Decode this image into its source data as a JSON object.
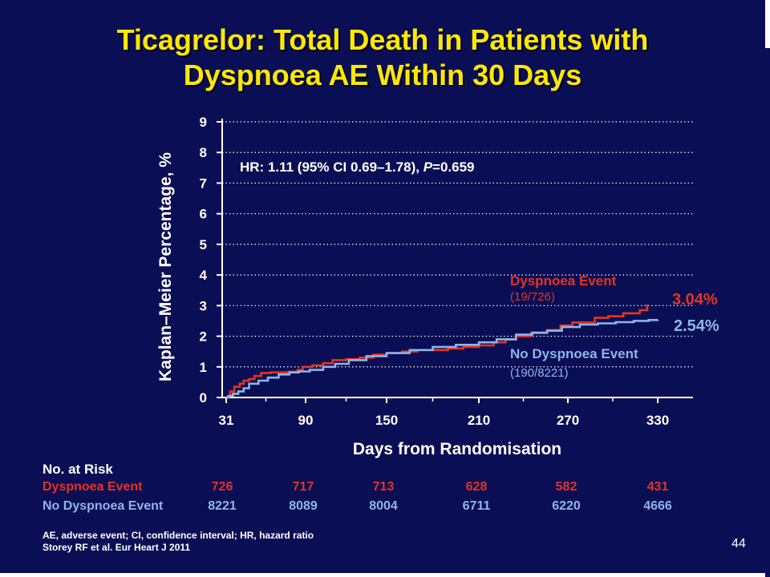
{
  "slide": {
    "title_line1": "Ticagrelor: Total Death in Patients with",
    "title_line2": "Dyspnoea AE Within 30 Days",
    "footnote_line1": "AE, adverse event; CI, confidence interval; HR, hazard ratio",
    "footnote_line2": "Storey RF et al. Eur Heart J 2011",
    "page_number": "44"
  },
  "colors": {
    "background": "#0a0f55",
    "title": "#ffe800",
    "dyspnoea": "#e8321e",
    "no_dyspnoea": "#8fb4ea",
    "grid": "#ffffff"
  },
  "chart_data": {
    "type": "line",
    "title": "",
    "xlabel": "Days from Randomisation",
    "ylabel": "Kaplan–Meier Percentage, %",
    "x_ticks": [
      31,
      90,
      150,
      210,
      270,
      330
    ],
    "y_ticks": [
      0,
      1,
      2,
      3,
      4,
      5,
      6,
      7,
      8,
      9
    ],
    "xlim": [
      31,
      360
    ],
    "ylim": [
      0,
      9
    ],
    "grid": "horizontal dotted",
    "annotation_hr": "HR: 1.11 (95% CI 0.69–1.78), ",
    "annotation_p_label": "P",
    "annotation_p_value": "=0.659",
    "series": [
      {
        "name": "Dyspnoea Event",
        "counts": "(19/726)",
        "end_label": "3.04%",
        "color": "#e8321e",
        "points": [
          [
            31,
            0
          ],
          [
            32,
            0.05
          ],
          [
            34,
            0.2
          ],
          [
            37,
            0.35
          ],
          [
            41,
            0.45
          ],
          [
            44,
            0.55
          ],
          [
            48,
            0.6
          ],
          [
            52,
            0.7
          ],
          [
            57,
            0.8
          ],
          [
            64,
            0.82
          ],
          [
            70,
            0.82
          ],
          [
            77,
            0.84
          ],
          [
            84,
            0.9
          ],
          [
            88,
            1.0
          ],
          [
            95,
            1.05
          ],
          [
            103,
            1.12
          ],
          [
            110,
            1.22
          ],
          [
            120,
            1.25
          ],
          [
            130,
            1.3
          ],
          [
            140,
            1.4
          ],
          [
            150,
            1.45
          ],
          [
            160,
            1.5
          ],
          [
            170,
            1.55
          ],
          [
            180,
            1.55
          ],
          [
            190,
            1.6
          ],
          [
            200,
            1.65
          ],
          [
            210,
            1.7
          ],
          [
            220,
            1.8
          ],
          [
            228,
            1.9
          ],
          [
            235,
            2.0
          ],
          [
            245,
            2.1
          ],
          [
            256,
            2.2
          ],
          [
            265,
            2.35
          ],
          [
            273,
            2.45
          ],
          [
            288,
            2.6
          ],
          [
            297,
            2.65
          ],
          [
            307,
            2.75
          ],
          [
            318,
            2.85
          ],
          [
            323,
            3.04
          ]
        ]
      },
      {
        "name": "No Dyspnoea Event",
        "counts": "(190/8221)",
        "end_label": "2.54%",
        "color": "#8fb4ea",
        "points": [
          [
            31,
            0
          ],
          [
            33,
            0.05
          ],
          [
            36,
            0.12
          ],
          [
            40,
            0.2
          ],
          [
            44,
            0.3
          ],
          [
            48,
            0.45
          ],
          [
            55,
            0.55
          ],
          [
            62,
            0.65
          ],
          [
            70,
            0.75
          ],
          [
            78,
            0.82
          ],
          [
            85,
            0.85
          ],
          [
            93,
            0.9
          ],
          [
            103,
            1.0
          ],
          [
            112,
            1.1
          ],
          [
            122,
            1.22
          ],
          [
            135,
            1.35
          ],
          [
            150,
            1.45
          ],
          [
            165,
            1.55
          ],
          [
            180,
            1.65
          ],
          [
            195,
            1.72
          ],
          [
            210,
            1.8
          ],
          [
            222,
            1.9
          ],
          [
            235,
            2.05
          ],
          [
            246,
            2.12
          ],
          [
            256,
            2.18
          ],
          [
            266,
            2.3
          ],
          [
            278,
            2.38
          ],
          [
            290,
            2.42
          ],
          [
            302,
            2.46
          ],
          [
            314,
            2.5
          ],
          [
            324,
            2.53
          ],
          [
            330,
            2.54
          ]
        ]
      }
    ],
    "risk_table": {
      "heading": "No. at Risk",
      "rows": [
        {
          "label": "Dyspnoea Event",
          "color": "#e8321e",
          "values": [
            "726",
            "717",
            "713",
            "628",
            "582",
            "431"
          ]
        },
        {
          "label": "No Dyspnoea Event",
          "color": "#8fb4ea",
          "values": [
            "8221",
            "8089",
            "8004",
            "6711",
            "6220",
            "4666"
          ]
        }
      ]
    }
  }
}
